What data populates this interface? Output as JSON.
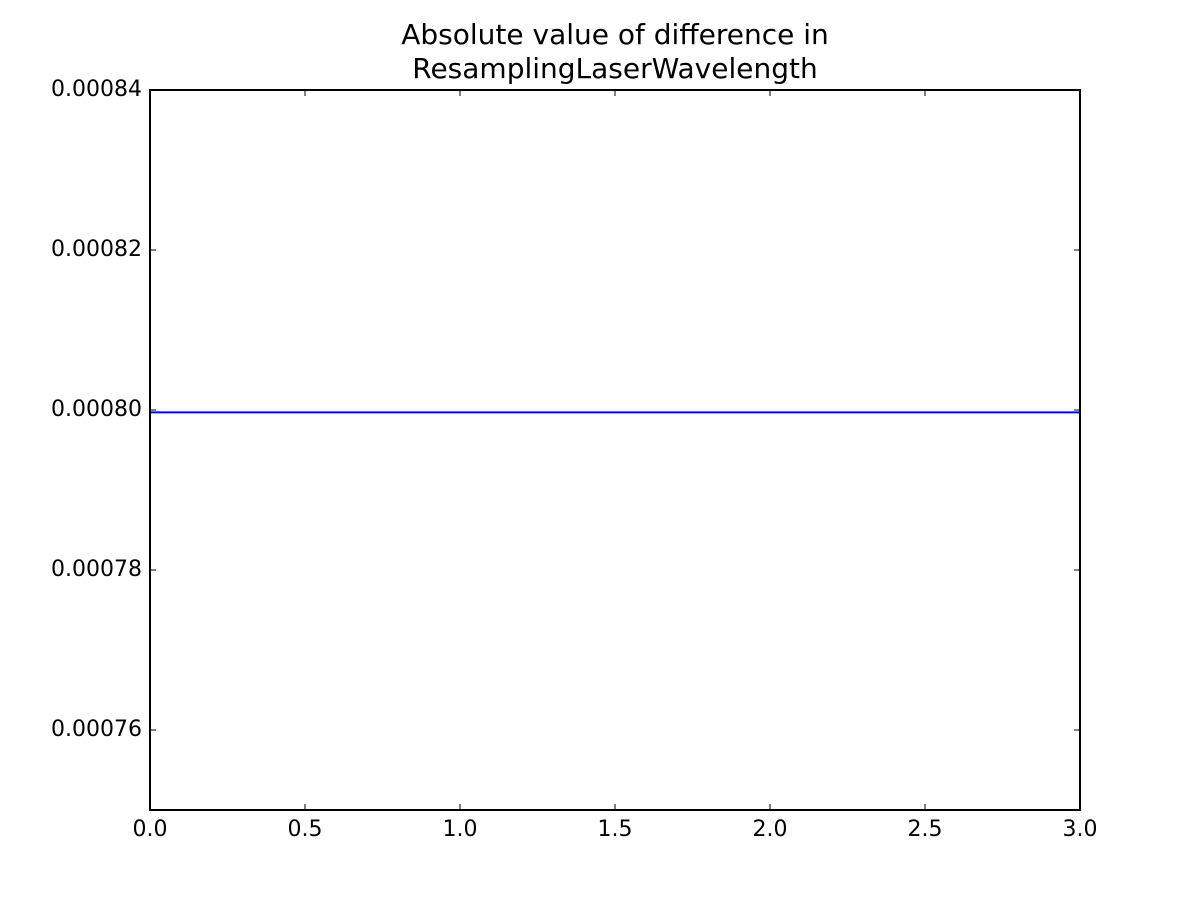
{
  "chart_data": {
    "type": "line",
    "title": "Absolute value of difference in\nResamplingLaserWavelength",
    "x": [
      0,
      1,
      2,
      3
    ],
    "series": [
      {
        "color": "#0000ff",
        "values": [
          0.0007997,
          0.0007997,
          0.0007997,
          0.0007997
        ]
      }
    ],
    "xlim": [
      0,
      3
    ],
    "xticks": [
      {
        "value": 0,
        "label": "0.0"
      },
      0.5,
      {
        "value": 1,
        "label": "1.0"
      },
      1.5,
      {
        "value": 2,
        "label": "2.0"
      },
      2.5,
      {
        "value": 3,
        "label": "3.0"
      }
    ],
    "ylim": [
      0.00075,
      0.00084
    ],
    "yticks": [
      0.00076,
      0.00078,
      {
        "value": 0.0008,
        "label": "0.00080"
      },
      0.00082,
      0.00084
    ],
    "grid": false
  }
}
